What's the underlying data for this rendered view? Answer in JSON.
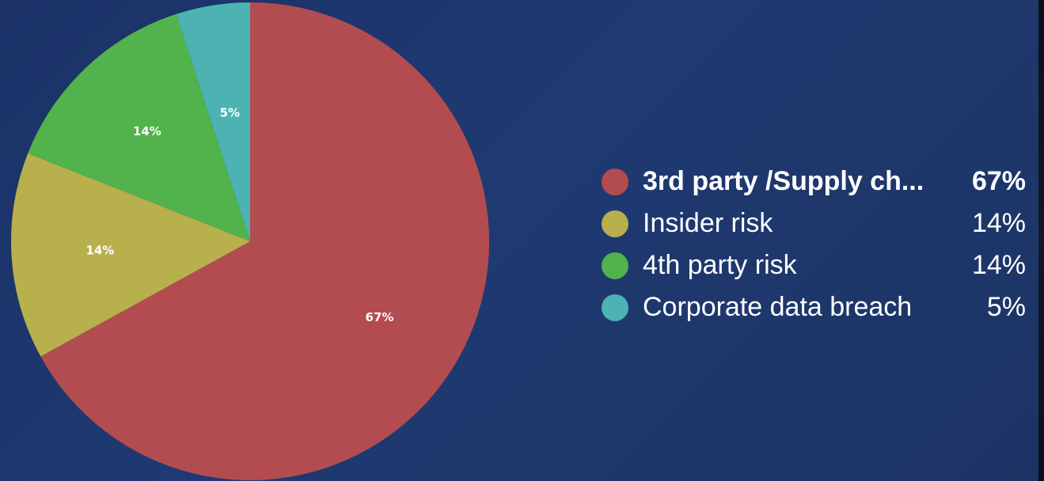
{
  "chart_data": {
    "type": "pie",
    "categories": [
      "3rd party /Supply ch...",
      "Insider risk",
      "4th party risk",
      "Corporate data breach"
    ],
    "values": [
      67,
      14,
      14,
      5
    ],
    "value_labels": [
      "67%",
      "14%",
      "14%",
      "5%"
    ],
    "colors": [
      "#b34c50",
      "#b8b04d",
      "#52b24c",
      "#4cb3b2"
    ],
    "start_angle": "12 o'clock",
    "direction": "clockwise",
    "legend_position": "right"
  }
}
